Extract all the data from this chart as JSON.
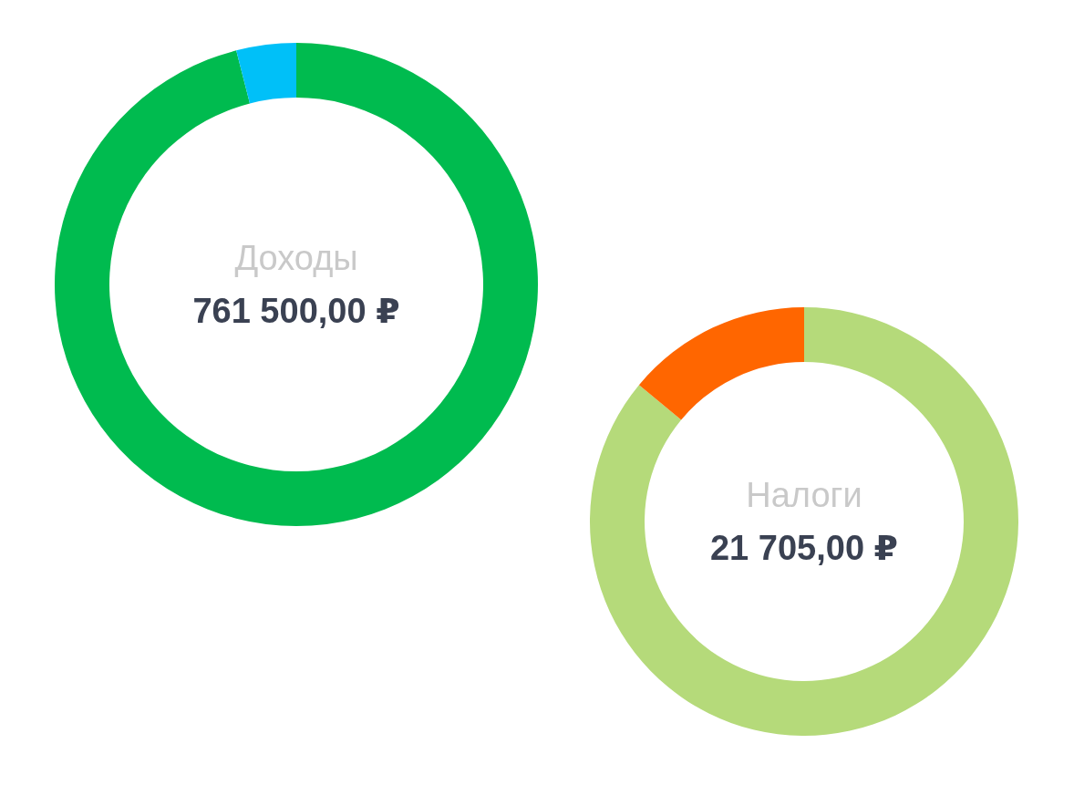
{
  "chart_data": [
    {
      "type": "donut",
      "title": "Доходы",
      "subtitle": "761 500,00 ₽",
      "categories": [
        null,
        null
      ],
      "values": [
        96,
        4
      ],
      "colors": [
        "#00bb4f",
        "#00c0f8"
      ]
    },
    {
      "type": "donut",
      "title": "Налоги",
      "subtitle": "21 705,00 ₽",
      "categories": [
        null,
        null
      ],
      "values": [
        86,
        14
      ],
      "colors": [
        "#b5da7a",
        "#ff6600"
      ]
    }
  ]
}
